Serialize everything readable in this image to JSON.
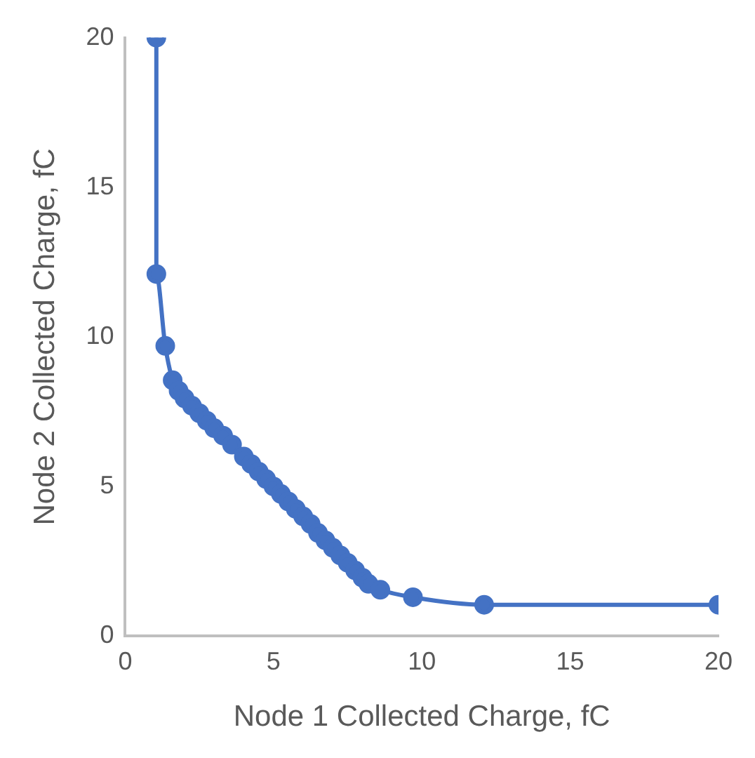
{
  "chart_data": {
    "type": "line",
    "xlabel": "Node 1 Collected Charge, fC",
    "ylabel": "Node 2 Collected Charge, fC",
    "x": [
      1.05,
      1.05,
      1.35,
      1.6,
      1.8,
      2.0,
      2.25,
      2.5,
      2.75,
      3.0,
      3.3,
      3.6,
      4.0,
      4.25,
      4.5,
      4.75,
      5.0,
      5.25,
      5.5,
      5.75,
      6.0,
      6.25,
      6.5,
      6.75,
      7.0,
      7.25,
      7.5,
      7.75,
      8.0,
      8.2,
      8.6,
      9.7,
      12.1,
      20
    ],
    "series": [
      {
        "color": "#4472c4",
        "values": [
          20,
          12.1,
          9.7,
          8.55,
          8.2,
          7.95,
          7.7,
          7.45,
          7.2,
          6.95,
          6.7,
          6.4,
          6.0,
          5.75,
          5.5,
          5.25,
          5.0,
          4.75,
          4.5,
          4.25,
          4.0,
          3.75,
          3.45,
          3.2,
          2.95,
          2.7,
          2.45,
          2.2,
          1.95,
          1.75,
          1.55,
          1.3,
          1.05,
          1.05
        ]
      }
    ],
    "xlim": [
      0,
      20
    ],
    "xticks": [
      0,
      5,
      10,
      15,
      20
    ],
    "ylim": [
      0,
      20
    ],
    "yticks": [
      0,
      5,
      10,
      15,
      20
    ],
    "marker": "circle",
    "line_style": "solid",
    "legend": false
  }
}
